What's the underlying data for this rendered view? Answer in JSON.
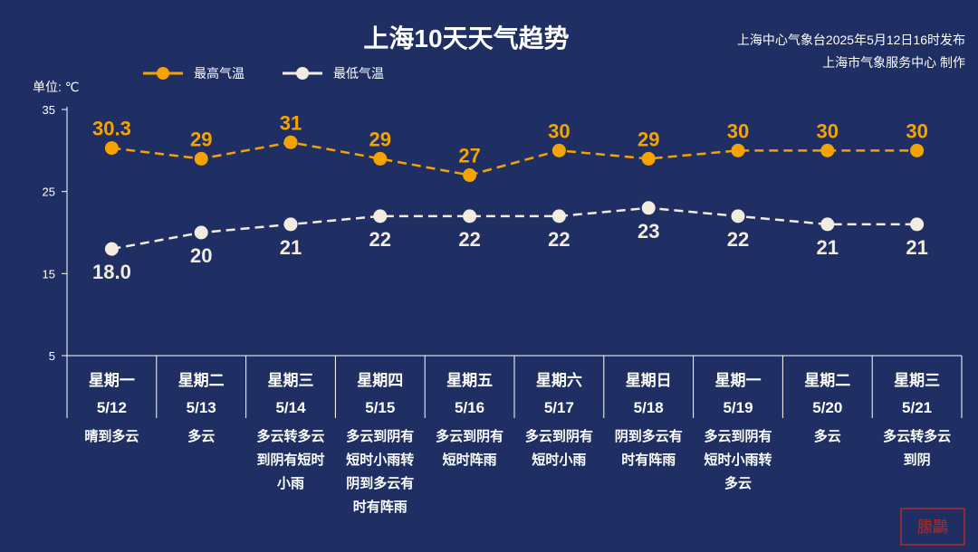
{
  "title": "上海10天天气趋势",
  "source": {
    "line1": "上海中心气象台2025年5月12日16时发布",
    "line2": "上海市气象服务中心 制作"
  },
  "unit_label": "单位: ℃",
  "watermark": "縢鸓",
  "colors": {
    "background": "#1f2f63",
    "high": "#f5a300",
    "low": "#f3ece0"
  },
  "chart_data": {
    "type": "line",
    "title": "上海10天天气趋势",
    "ylim": [
      5,
      35
    ],
    "yticks": [
      5,
      15,
      25,
      35
    ],
    "grid": false,
    "legend_position": "top-left",
    "days": [
      "星期一",
      "星期二",
      "星期三",
      "星期四",
      "星期五",
      "星期六",
      "星期日",
      "星期一",
      "星期二",
      "星期三"
    ],
    "dates": [
      "5/12",
      "5/13",
      "5/14",
      "5/15",
      "5/16",
      "5/17",
      "5/18",
      "5/19",
      "5/20",
      "5/21"
    ],
    "weather": [
      [
        "晴到多云"
      ],
      [
        "多云"
      ],
      [
        "多云转多云",
        "到阴有短时",
        "小雨"
      ],
      [
        "多云到阴有",
        "短时小雨转",
        "阴到多云有",
        "时有阵雨"
      ],
      [
        "多云到阴有",
        "短时阵雨"
      ],
      [
        "多云到阴有",
        "短时小雨"
      ],
      [
        "阴到多云有",
        "时有阵雨"
      ],
      [
        "多云到阴有",
        "短时小雨转",
        "多云"
      ],
      [
        "多云"
      ],
      [
        "多云转多云",
        "到阴"
      ]
    ],
    "series": [
      {
        "name": "最高气温",
        "values": [
          30.3,
          29,
          31,
          29,
          27,
          30,
          29,
          30,
          30,
          30
        ],
        "labels": [
          "30.3",
          "29",
          "31",
          "29",
          "27",
          "30",
          "29",
          "30",
          "30",
          "30"
        ]
      },
      {
        "name": "最低气温",
        "values": [
          18.0,
          20,
          21,
          22,
          22,
          22,
          23,
          22,
          21,
          21
        ],
        "labels": [
          "18.0",
          "20",
          "21",
          "22",
          "22",
          "22",
          "23",
          "22",
          "21",
          "21"
        ]
      }
    ]
  }
}
